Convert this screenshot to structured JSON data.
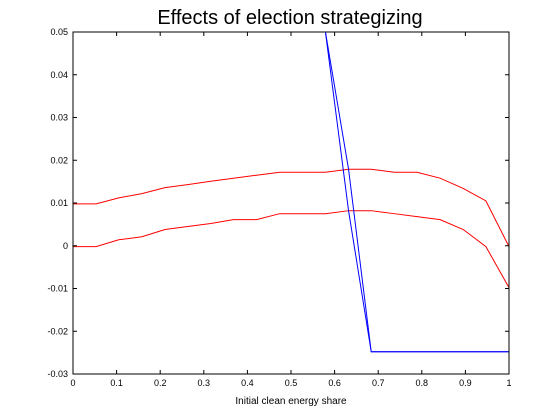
{
  "chart_data": {
    "type": "line",
    "title": "Effects of election strategizing",
    "xlabel": "Initial clean energy share",
    "ylabel": "",
    "xlim": [
      0,
      1
    ],
    "ylim": [
      -0.03,
      0.05
    ],
    "xticks": [
      "0",
      "0.1",
      "0.2",
      "0.3",
      "0.4",
      "0.5",
      "0.6",
      "0.7",
      "0.8",
      "0.9",
      "1"
    ],
    "yticks": [
      "-0.03",
      "-0.02",
      "-0.01",
      "0",
      "0.01",
      "0.02",
      "0.03",
      "0.04",
      "0.05"
    ],
    "grid": false,
    "series": [
      {
        "color": "#ff0000",
        "x": [
          0,
          0.053,
          0.105,
          0.158,
          0.211,
          0.263,
          0.316,
          0.368,
          0.421,
          0.474,
          0.526,
          0.579,
          0.632,
          0.684,
          0.737,
          0.789,
          0.842,
          0.895,
          0.947,
          1.0
        ],
        "y": [
          0.0098,
          0.0098,
          0.0112,
          0.0122,
          0.0136,
          0.0143,
          0.0151,
          0.0158,
          0.0165,
          0.0172,
          0.0172,
          0.0172,
          0.0179,
          0.0179,
          0.0172,
          0.0172,
          0.0158,
          0.0134,
          0.0105,
          -0.0002
        ]
      },
      {
        "color": "#ff0000",
        "x": [
          0,
          0.053,
          0.105,
          0.158,
          0.211,
          0.263,
          0.316,
          0.368,
          0.421,
          0.474,
          0.526,
          0.579,
          0.632,
          0.684,
          0.737,
          0.789,
          0.842,
          0.895,
          0.947,
          1.0
        ],
        "y": [
          -0.0002,
          -0.0002,
          0.0014,
          0.0021,
          0.0038,
          0.0045,
          0.0052,
          0.0061,
          0.0061,
          0.0075,
          0.0075,
          0.0075,
          0.0082,
          0.0082,
          0.0075,
          0.0068,
          0.0061,
          0.0038,
          -0.0002,
          -0.0098
        ]
      },
      {
        "color": "#0000ff",
        "x": [
          0.579,
          0.632,
          0.684,
          1.0
        ],
        "y": [
          0.05,
          0.0179,
          -0.0248,
          -0.0248
        ]
      },
      {
        "color": "#0000ff",
        "x": [
          0.579,
          0.632,
          0.684,
          1.0
        ],
        "y": [
          0.05,
          0.0082,
          -0.0248,
          -0.0248
        ]
      }
    ]
  }
}
